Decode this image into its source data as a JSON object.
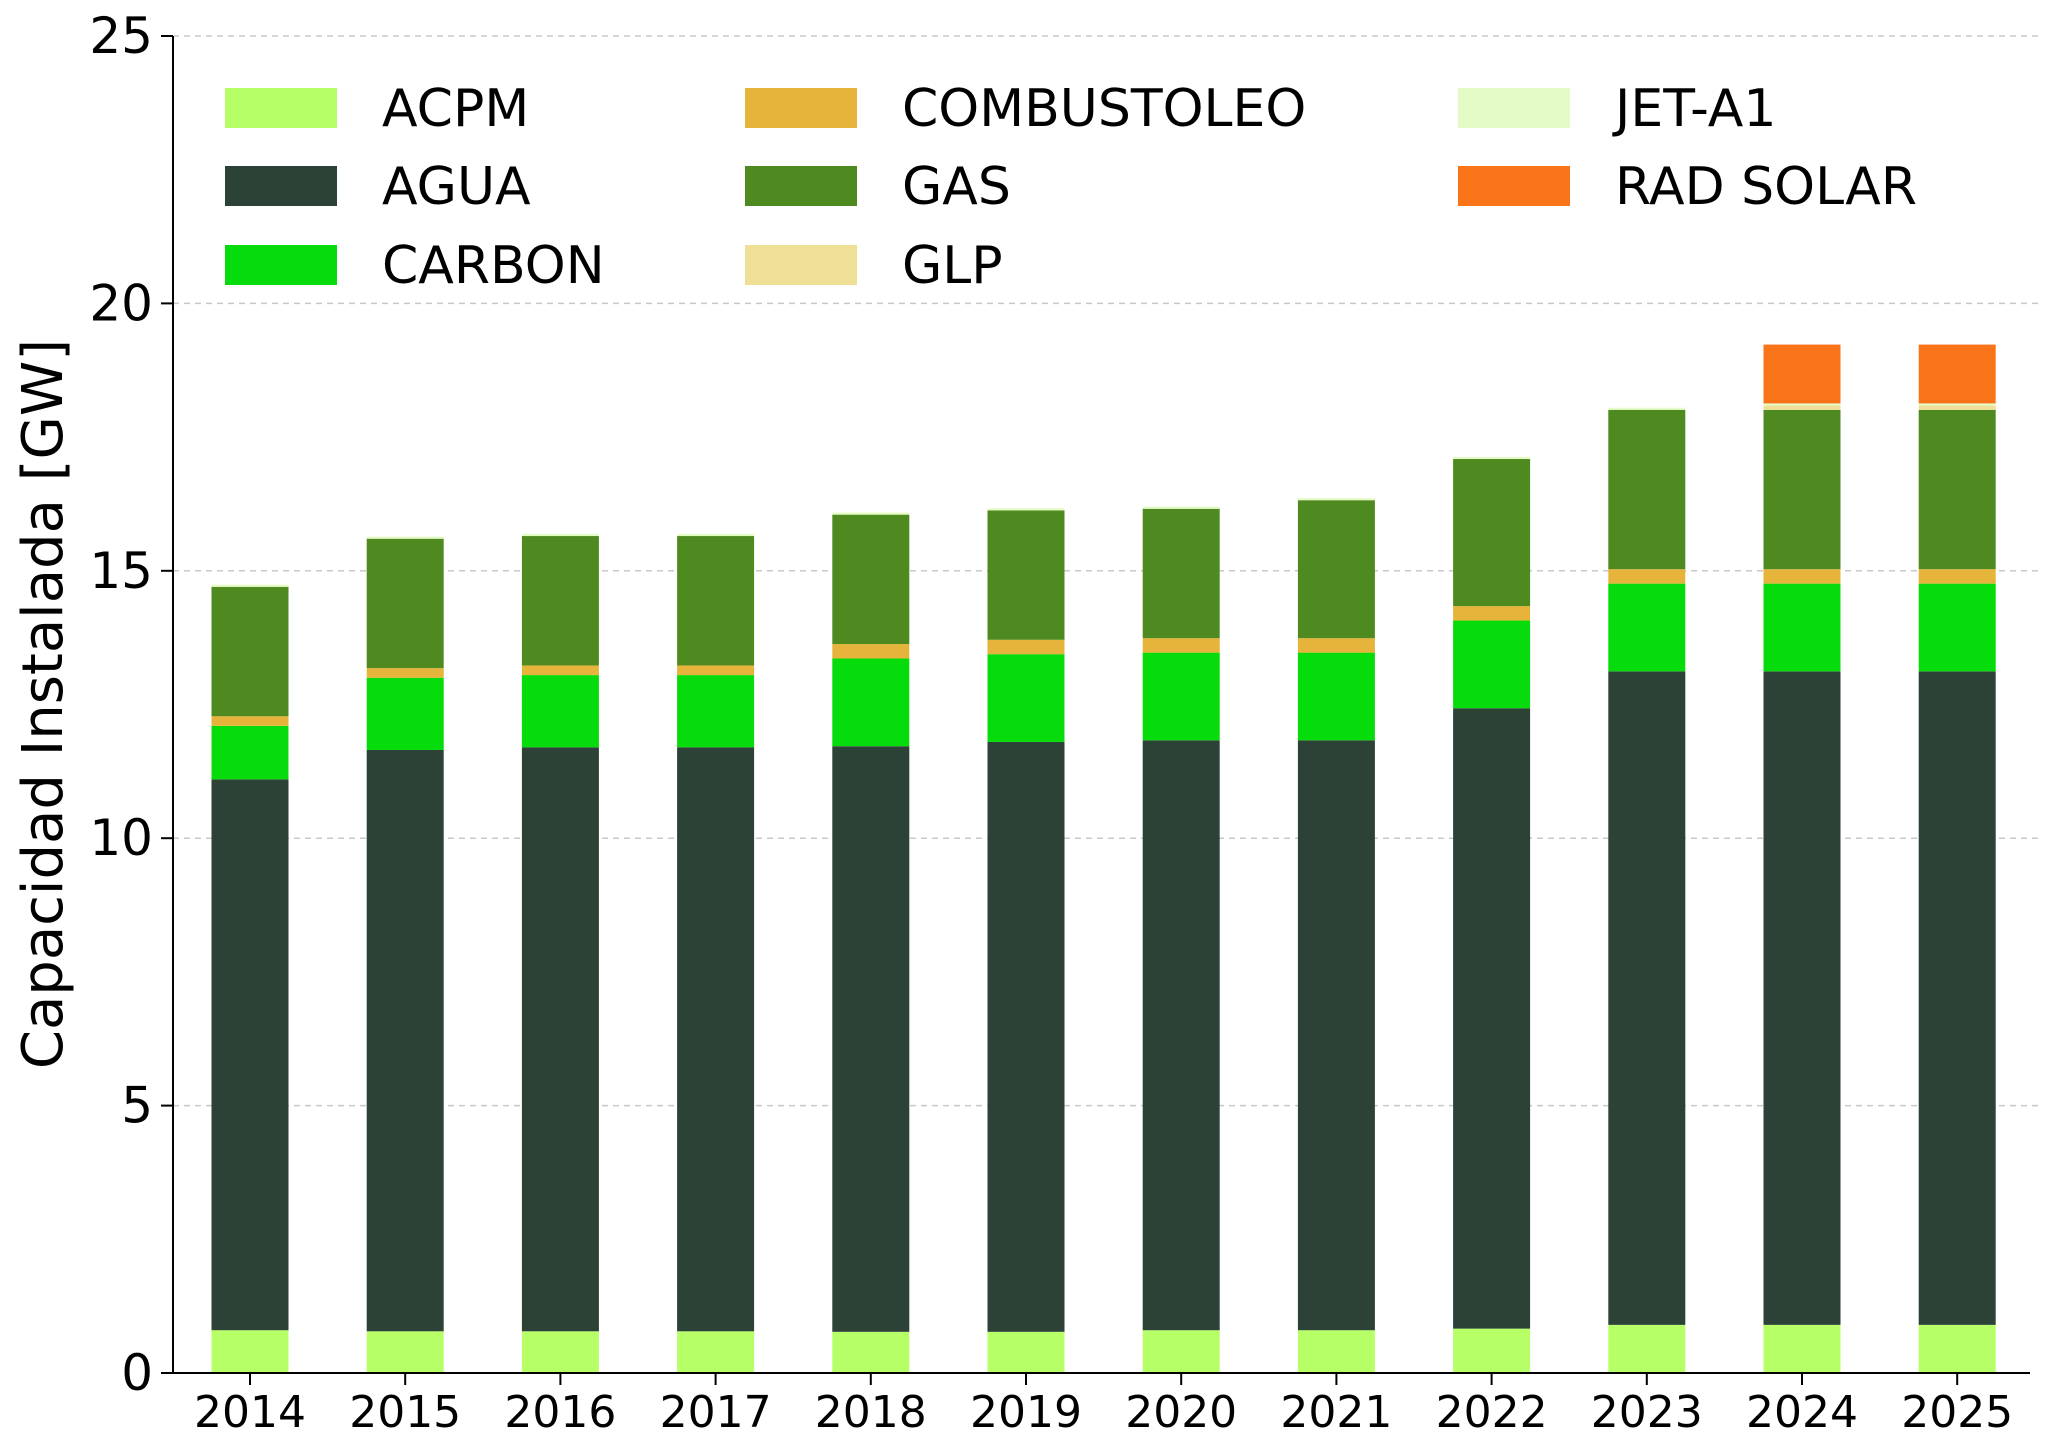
{
  "chart_data": {
    "type": "bar",
    "stacked": true,
    "title": "",
    "xlabel": "",
    "ylabel": "Capacidad Instalada [GW]",
    "ylim": [
      0,
      25
    ],
    "yticks": [
      "0",
      "5",
      "10",
      "15",
      "20",
      "25"
    ],
    "grid": "horizontal dashed",
    "legend_placement": "top-left",
    "categories": [
      "2014",
      "2015",
      "2016",
      "2017",
      "2018",
      "2019",
      "2020",
      "2021",
      "2022",
      "2023",
      "2024",
      "2025"
    ],
    "series": [
      {
        "name": "ACPM",
        "color": "#b7ff66",
        "values": [
          0.8,
          0.78,
          0.78,
          0.78,
          0.77,
          0.77,
          0.8,
          0.8,
          0.83,
          0.9,
          0.9,
          0.9
        ]
      },
      {
        "name": "AGUA",
        "color": "#2c4237",
        "values": [
          10.3,
          10.87,
          10.92,
          10.92,
          10.95,
          11.03,
          11.03,
          11.03,
          11.6,
          12.22,
          12.22,
          12.22
        ]
      },
      {
        "name": "CARBON",
        "color": "#06dc0b",
        "values": [
          1.0,
          1.35,
          1.35,
          1.35,
          1.64,
          1.64,
          1.64,
          1.64,
          1.64,
          1.64,
          1.64,
          1.64
        ]
      },
      {
        "name": "COMBUSTOLEO",
        "color": "#e6b43a",
        "values": [
          0.18,
          0.18,
          0.18,
          0.18,
          0.27,
          0.27,
          0.27,
          0.27,
          0.27,
          0.27,
          0.27,
          0.27
        ]
      },
      {
        "name": "GAS",
        "color": "#4f8a21",
        "values": [
          2.42,
          2.42,
          2.42,
          2.42,
          2.42,
          2.42,
          2.42,
          2.58,
          2.75,
          2.98,
          2.98,
          2.98
        ]
      },
      {
        "name": "GLP",
        "color": "#f0df96",
        "values": [
          0.0,
          0.0,
          0.0,
          0.0,
          0.0,
          0.0,
          0.0,
          0.0,
          0.0,
          0.0,
          0.08,
          0.08
        ]
      },
      {
        "name": "JET-A1",
        "color": "#e5fbc5",
        "values": [
          0.04,
          0.04,
          0.04,
          0.04,
          0.04,
          0.04,
          0.04,
          0.04,
          0.04,
          0.04,
          0.04,
          0.04
        ]
      },
      {
        "name": "RAD SOLAR",
        "color": "#f97419",
        "values": [
          0.0,
          0.0,
          0.0,
          0.0,
          0.0,
          0.0,
          0.0,
          0.0,
          0.0,
          0.0,
          1.1,
          1.1
        ]
      }
    ]
  }
}
